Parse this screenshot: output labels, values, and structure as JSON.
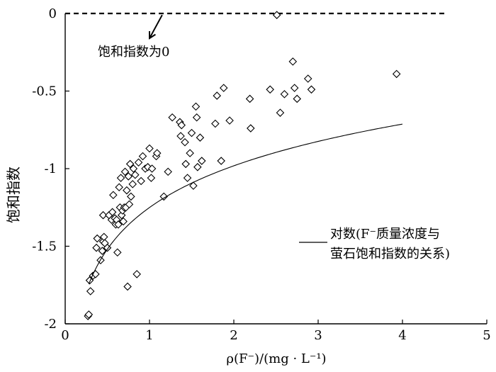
{
  "chart_data": {
    "type": "scatter",
    "xlabel": "ρ(F⁻)/(mg · L⁻¹)",
    "ylabel": "饱和指数",
    "xlim": [
      0,
      5
    ],
    "ylim": [
      -2,
      0
    ],
    "xticks": [
      0,
      1,
      2,
      3,
      4,
      5
    ],
    "yticks": [
      0,
      -0.5,
      -1,
      -1.5,
      -2
    ],
    "x_tick_labels": [
      "0",
      "1",
      "2",
      "3",
      "4",
      "5"
    ],
    "y_tick_labels": [
      "0",
      "-0.5",
      "-1",
      "-1.5",
      "-2"
    ],
    "grid": false,
    "zero_line": {
      "y": 0,
      "x_end": 4.5,
      "style": "dashed"
    },
    "annotation": {
      "text": "饱和指数为0",
      "arrow_from": [
        1.15,
        -0.01
      ],
      "arrow_to": [
        1.0,
        -0.16
      ]
    },
    "legend": {
      "placement": "right",
      "line1": "对数(F⁻质量浓度与",
      "line2": "萤石饱和指数的关系)"
    },
    "trend": {
      "type": "log",
      "a": 0.3878,
      "b": -1.2505,
      "x_min": 0.28,
      "x_max": 4.0
    },
    "points": [
      [
        0.27,
        -1.95
      ],
      [
        0.28,
        -1.94
      ],
      [
        0.29,
        -1.72
      ],
      [
        0.3,
        -1.79
      ],
      [
        0.33,
        -1.69
      ],
      [
        0.36,
        -1.68
      ],
      [
        0.37,
        -1.51
      ],
      [
        0.38,
        -1.45
      ],
      [
        0.42,
        -1.59
      ],
      [
        0.44,
        -1.53
      ],
      [
        0.45,
        -1.47
      ],
      [
        0.46,
        -1.44
      ],
      [
        0.47,
        -1.48
      ],
      [
        0.45,
        -1.3
      ],
      [
        0.5,
        -1.51
      ],
      [
        0.52,
        -1.3
      ],
      [
        0.55,
        -1.33
      ],
      [
        0.56,
        -1.28
      ],
      [
        0.57,
        -1.17
      ],
      [
        0.59,
        -1.32
      ],
      [
        0.6,
        -1.36
      ],
      [
        0.61,
        -1.33
      ],
      [
        0.62,
        -1.54
      ],
      [
        0.63,
        -1.36
      ],
      [
        0.64,
        -1.12
      ],
      [
        0.65,
        -1.25
      ],
      [
        0.66,
        -1.06
      ],
      [
        0.67,
        -1.3
      ],
      [
        0.68,
        -1.27
      ],
      [
        0.69,
        -1.34
      ],
      [
        0.7,
        -1.25
      ],
      [
        0.71,
        -1.02
      ],
      [
        0.72,
        -1.25
      ],
      [
        0.73,
        -1.14
      ],
      [
        0.74,
        -1.76
      ],
      [
        0.75,
        -1.05
      ],
      [
        0.76,
        -1.23
      ],
      [
        0.77,
        -0.97
      ],
      [
        0.78,
        -1.18
      ],
      [
        0.8,
        -1.1
      ],
      [
        0.81,
        -1.0
      ],
      [
        0.83,
        -1.04
      ],
      [
        0.85,
        -1.68
      ],
      [
        0.87,
        -0.96
      ],
      [
        0.9,
        -1.08
      ],
      [
        0.92,
        -0.92
      ],
      [
        0.95,
        -1.0
      ],
      [
        0.98,
        -0.99
      ],
      [
        1.0,
        -0.87
      ],
      [
        1.02,
        -1.06
      ],
      [
        1.03,
        -1.0
      ],
      [
        1.08,
        -0.92
      ],
      [
        1.09,
        -0.9
      ],
      [
        1.17,
        -1.18
      ],
      [
        1.22,
        -1.02
      ],
      [
        1.27,
        -0.67
      ],
      [
        1.36,
        -0.7
      ],
      [
        1.37,
        -0.79
      ],
      [
        1.38,
        -0.72
      ],
      [
        1.42,
        -0.83
      ],
      [
        1.43,
        -0.97
      ],
      [
        1.45,
        -1.06
      ],
      [
        1.48,
        -0.9
      ],
      [
        1.5,
        -0.77
      ],
      [
        1.52,
        -1.11
      ],
      [
        1.55,
        -0.6
      ],
      [
        1.56,
        -0.67
      ],
      [
        1.57,
        -0.99
      ],
      [
        1.6,
        -0.8
      ],
      [
        1.62,
        -0.95
      ],
      [
        1.78,
        -0.71
      ],
      [
        1.8,
        -0.53
      ],
      [
        1.85,
        -0.95
      ],
      [
        1.88,
        -0.48
      ],
      [
        1.95,
        -0.69
      ],
      [
        2.19,
        -0.55
      ],
      [
        2.2,
        -0.74
      ],
      [
        2.43,
        -0.49
      ],
      [
        2.51,
        -0.01
      ],
      [
        2.55,
        -0.64
      ],
      [
        2.6,
        -0.52
      ],
      [
        2.7,
        -0.31
      ],
      [
        2.72,
        -0.48
      ],
      [
        2.75,
        -0.55
      ],
      [
        2.88,
        -0.42
      ],
      [
        2.92,
        -0.49
      ],
      [
        3.93,
        -0.39
      ]
    ]
  }
}
